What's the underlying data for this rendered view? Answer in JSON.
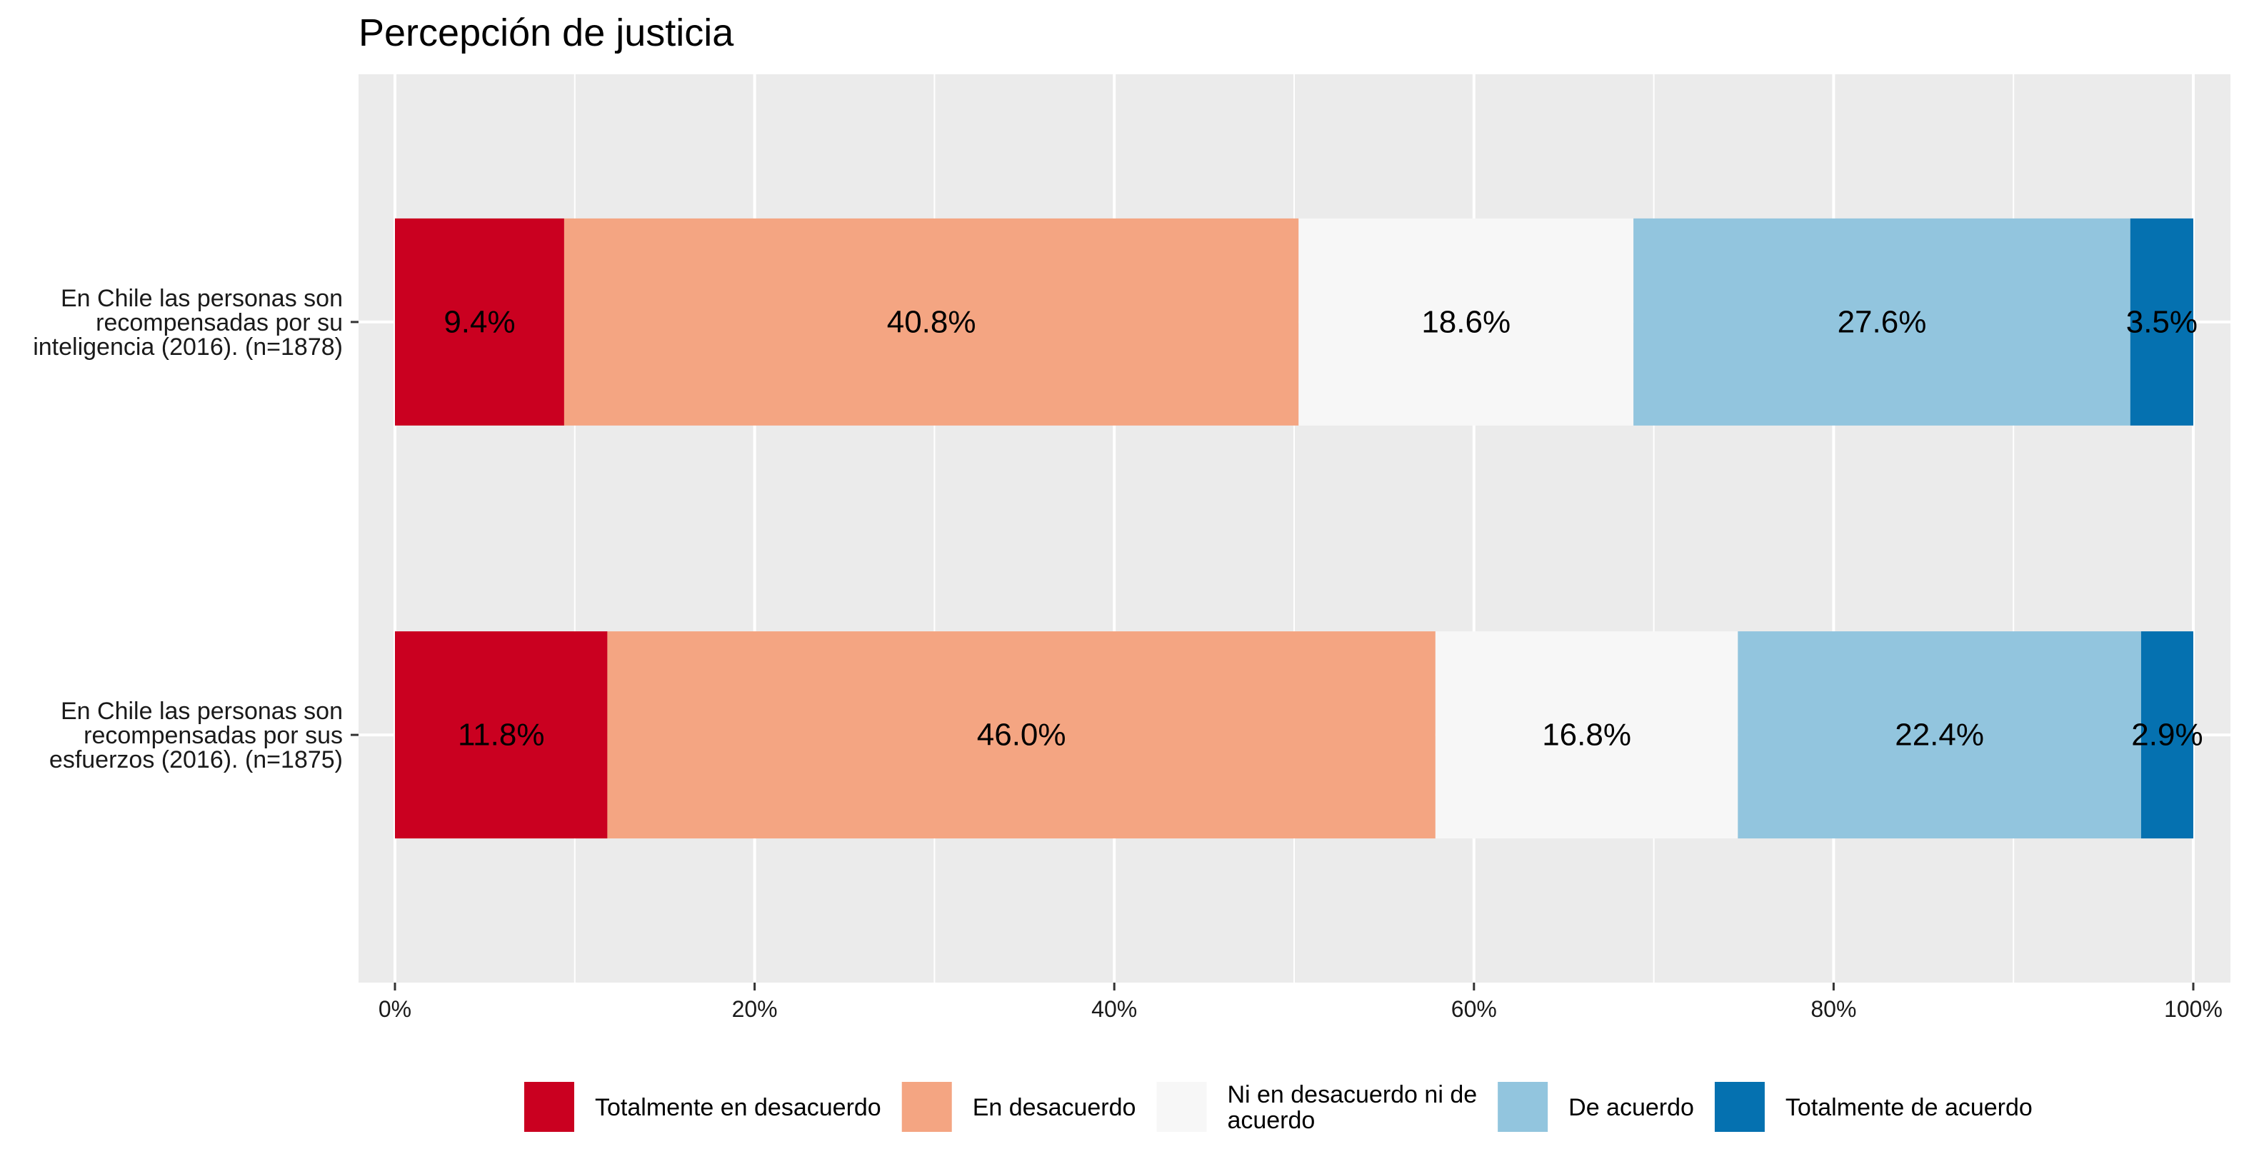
{
  "chart_data": {
    "type": "bar",
    "orientation": "horizontal",
    "stacked": true,
    "title": "Percepción de justicia",
    "xlabel": "",
    "ylabel": "",
    "xlim": [
      0,
      100
    ],
    "x_ticks": [
      {
        "value": 0,
        "label": "0%"
      },
      {
        "value": 20,
        "label": "20%"
      },
      {
        "value": 40,
        "label": "40%"
      },
      {
        "value": 60,
        "label": "60%"
      },
      {
        "value": 80,
        "label": "80%"
      },
      {
        "value": 100,
        "label": "100%"
      }
    ],
    "grid": true,
    "legend_position": "bottom",
    "categories": [
      {
        "key": "inteligencia",
        "label_lines": [
          "En Chile las personas son",
          "recompensadas por su",
          "inteligencia (2016). (n=1878)"
        ]
      },
      {
        "key": "esfuerzos",
        "label_lines": [
          "En Chile las personas son",
          "recompensadas por sus",
          "esfuerzos (2016). (n=1875)"
        ]
      }
    ],
    "series": [
      {
        "name": "Totalmente en desacuerdo",
        "name_lines": [
          "Totalmente en desacuerdo"
        ],
        "color": "#ca0020",
        "values": [
          9.4,
          11.8
        ],
        "labels": [
          "9.4%",
          "11.8%"
        ]
      },
      {
        "name": "En desacuerdo",
        "name_lines": [
          "En desacuerdo"
        ],
        "color": "#f4a582",
        "values": [
          40.8,
          46.0
        ],
        "labels": [
          "40.8%",
          "46.0%"
        ]
      },
      {
        "name": "Ni en desacuerdo ni de acuerdo",
        "name_lines": [
          "Ni en desacuerdo ni de",
          "acuerdo"
        ],
        "color": "#f7f7f7",
        "values": [
          18.6,
          16.8
        ],
        "labels": [
          "18.6%",
          "16.8%"
        ]
      },
      {
        "name": "De acuerdo",
        "name_lines": [
          "De acuerdo"
        ],
        "color": "#92c5de",
        "values": [
          27.6,
          22.4
        ],
        "labels": [
          "27.6%",
          "22.4%"
        ]
      },
      {
        "name": "Totalmente de acuerdo",
        "name_lines": [
          "Totalmente de acuerdo"
        ],
        "color": "#0571b0",
        "values": [
          3.5,
          2.9
        ],
        "labels": [
          "3.5%",
          "2.9%"
        ]
      }
    ],
    "panel_color": "#ebebeb",
    "gridline_color": "#ffffff"
  }
}
